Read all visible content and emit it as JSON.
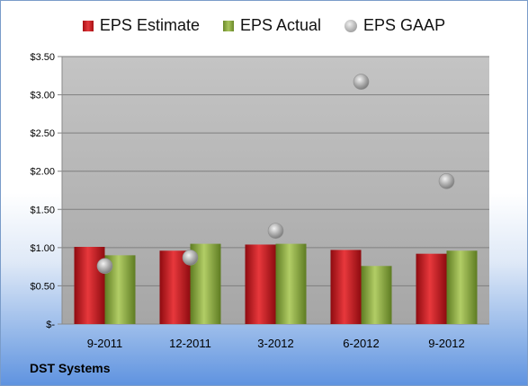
{
  "chart_data": {
    "type": "bar",
    "categories": [
      "9-2011",
      "12-2011",
      "3-2012",
      "6-2012",
      "9-2012"
    ],
    "series": [
      {
        "name": "EPS Estimate",
        "kind": "bar",
        "color": "#c8161c",
        "values": [
          1.01,
          0.96,
          1.04,
          0.97,
          0.92
        ]
      },
      {
        "name": "EPS Actual",
        "kind": "bar",
        "color": "#8db043",
        "values": [
          0.9,
          1.05,
          1.05,
          0.76,
          0.96
        ]
      },
      {
        "name": "EPS GAAP",
        "kind": "scatter",
        "color": "#b8b8b8",
        "values": [
          0.76,
          0.87,
          1.22,
          3.17,
          1.87
        ]
      }
    ],
    "ylim": [
      0,
      3.5
    ],
    "yticks": [
      0,
      0.5,
      1.0,
      1.5,
      2.0,
      2.5,
      3.0,
      3.5
    ],
    "ytick_labels": [
      "$-",
      "$0.50",
      "$1.00",
      "$1.50",
      "$2.00",
      "$2.50",
      "$3.00",
      "$3.50"
    ],
    "grid": true,
    "legend_position": "top"
  },
  "footer": {
    "company": "DST Systems"
  }
}
